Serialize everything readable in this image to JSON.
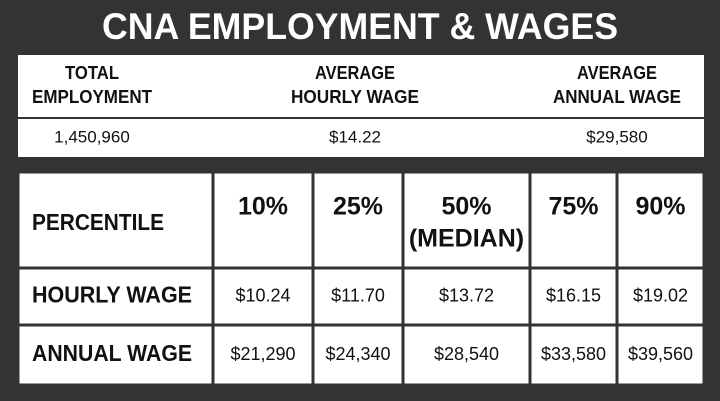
{
  "title": "CNA EMPLOYMENT & WAGES",
  "summary": {
    "headers": [
      [
        "TOTAL",
        "EMPLOYMENT"
      ],
      [
        "AVERAGE",
        "HOURLY WAGE"
      ],
      [
        "AVERAGE",
        "ANNUAL WAGE"
      ]
    ],
    "values": [
      "1,450,960",
      "$14.22",
      "$29,580"
    ]
  },
  "percentiles": {
    "corner": "PERCENTILE",
    "columns": [
      [
        "10%"
      ],
      [
        "25%"
      ],
      [
        "50%",
        "(MEDIAN)"
      ],
      [
        "75%"
      ],
      [
        "90%"
      ]
    ],
    "rows": [
      {
        "label": "HOURLY WAGE",
        "values": [
          "$10.24",
          "$11.70",
          "$13.72",
          "$16.15",
          "$19.02"
        ]
      },
      {
        "label": "ANNUAL WAGE",
        "values": [
          "$21,290",
          "$24,340",
          "$28,540",
          "$33,580",
          "$39,560"
        ]
      }
    ]
  }
}
